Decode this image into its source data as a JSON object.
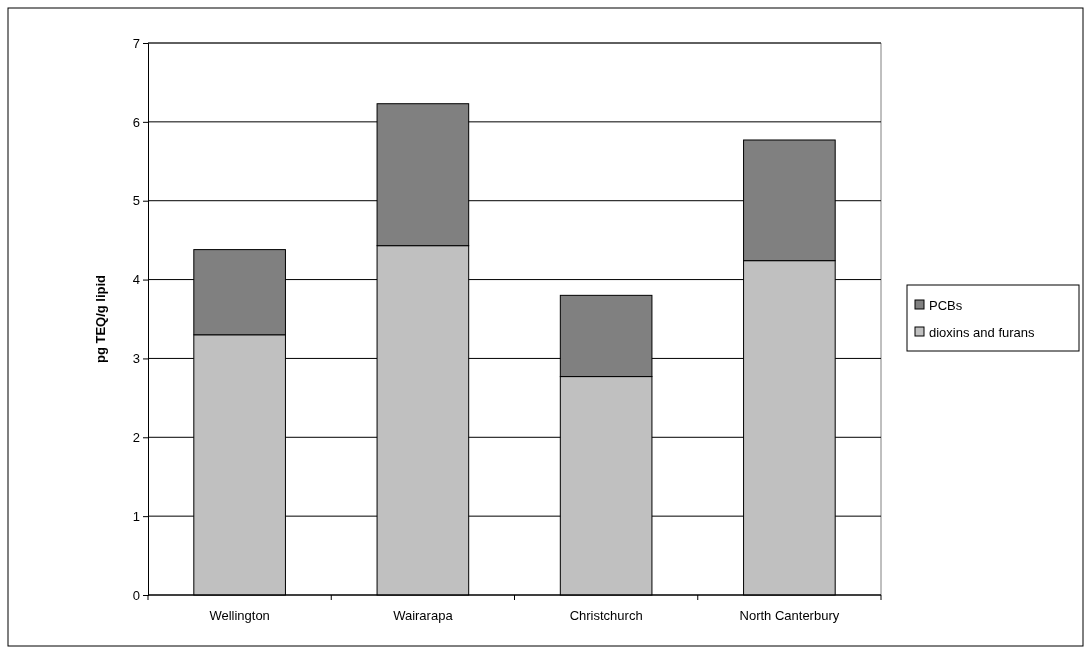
{
  "chart_data": {
    "type": "bar",
    "stacked": true,
    "ylabel": "pg TEQ/g lipid",
    "categories": [
      "Wellington",
      "Wairarapa",
      "Christchurch",
      "North Canterbury"
    ],
    "series": [
      {
        "name": "dioxins and furans",
        "color": "#c0c0c0",
        "values": [
          3.3,
          4.43,
          2.77,
          4.24
        ]
      },
      {
        "name": "PCBs",
        "color": "#808080",
        "values": [
          1.08,
          1.8,
          1.03,
          1.53
        ]
      }
    ],
    "ylim": [
      0,
      7
    ],
    "yticks": [
      0,
      1,
      2,
      3,
      4,
      5,
      6,
      7
    ],
    "grid": "y",
    "legend": "right"
  }
}
